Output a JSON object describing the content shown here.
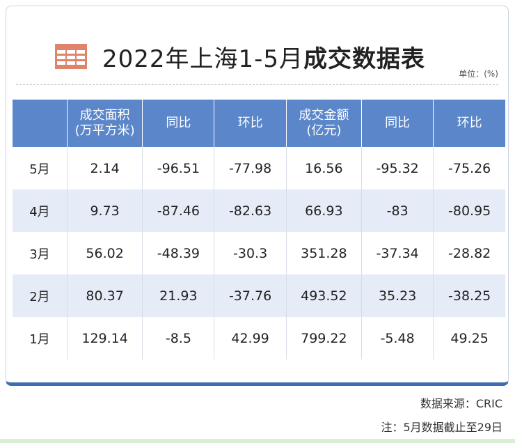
{
  "title": {
    "prefix": "2022年上海1-5月",
    "emphasis": "成交数据表",
    "icon": "table-icon"
  },
  "unit_label": "单位：(%)",
  "table": {
    "headers": [
      {
        "line1": "",
        "line2": ""
      },
      {
        "line1": "成交面积",
        "line2": "(万平方米)"
      },
      {
        "line1": "同比",
        "line2": ""
      },
      {
        "line1": "环比",
        "line2": ""
      },
      {
        "line1": "成交金额",
        "line2": "(亿元)"
      },
      {
        "line1": "同比",
        "line2": ""
      },
      {
        "line1": "环比",
        "line2": ""
      }
    ],
    "rows": [
      [
        "5月",
        "2.14",
        "-96.51",
        "-77.98",
        "16.56",
        "-95.32",
        "-75.26"
      ],
      [
        "4月",
        "9.73",
        "-87.46",
        "-82.63",
        "66.93",
        "-83",
        "-80.95"
      ],
      [
        "3月",
        "56.02",
        "-48.39",
        "-30.3",
        "351.28",
        "-37.34",
        "-28.82"
      ],
      [
        "2月",
        "80.37",
        "21.93",
        "-37.76",
        "493.52",
        "35.23",
        "-38.25"
      ],
      [
        "1月",
        "129.14",
        "-8.5",
        "42.99",
        "799.22",
        "-5.48",
        "49.25"
      ]
    ]
  },
  "footer": {
    "source": "数据来源：CRIC",
    "note": "注：5月数据截止至29日"
  },
  "colors": {
    "header_bg": "#5b86c9",
    "row_alt_bg": "#e6ecf7",
    "icon_orange": "#e0836b",
    "card_accent": "#3d6eb3"
  }
}
